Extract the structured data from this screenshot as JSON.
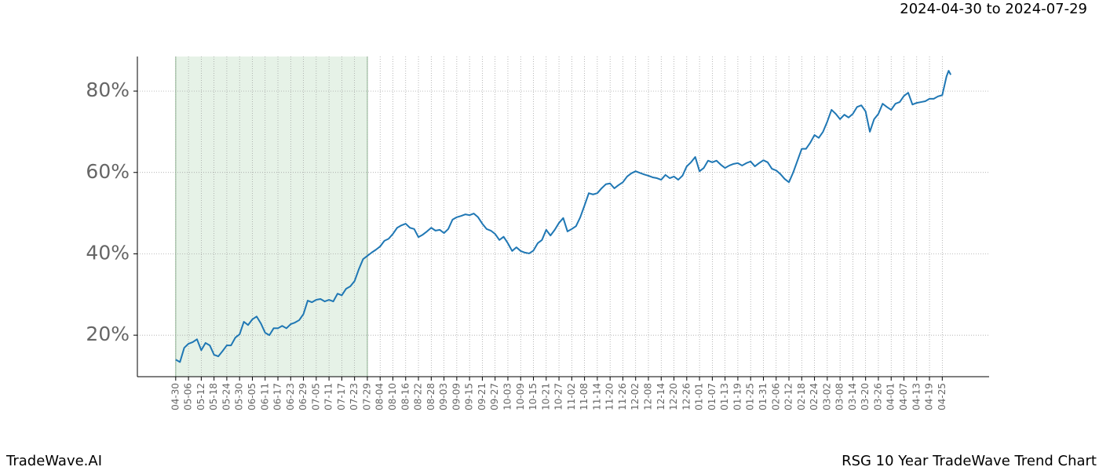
{
  "chart_data": {
    "type": "line",
    "date_range": "2024-04-30 to 2024-07-29",
    "footer_left": "TradeWave.AI",
    "footer_right": "RSG 10 Year TradeWave Trend Chart",
    "color": "#1f77b4",
    "shade": [
      0,
      90
    ],
    "grid": true,
    "xlim": [
      -18,
      382
    ],
    "ylim": [
      9.8,
      88.5
    ],
    "yticks": [
      {
        "value": 20,
        "label": "20%"
      },
      {
        "value": 40,
        "label": "40%"
      },
      {
        "value": 60,
        "label": "60%"
      },
      {
        "value": 80,
        "label": "80%"
      }
    ],
    "xticks": [
      {
        "value": 0,
        "label": "04-30"
      },
      {
        "value": 6,
        "label": "05-06"
      },
      {
        "value": 12,
        "label": "05-12"
      },
      {
        "value": 18,
        "label": "05-18"
      },
      {
        "value": 24,
        "label": "05-24"
      },
      {
        "value": 30,
        "label": "05-30"
      },
      {
        "value": 36,
        "label": "06-05"
      },
      {
        "value": 42,
        "label": "06-11"
      },
      {
        "value": 48,
        "label": "06-17"
      },
      {
        "value": 54,
        "label": "06-23"
      },
      {
        "value": 60,
        "label": "06-29"
      },
      {
        "value": 66,
        "label": "07-05"
      },
      {
        "value": 72,
        "label": "07-11"
      },
      {
        "value": 78,
        "label": "07-17"
      },
      {
        "value": 84,
        "label": "07-23"
      },
      {
        "value": 90,
        "label": "07-29"
      },
      {
        "value": 96,
        "label": "08-04"
      },
      {
        "value": 102,
        "label": "08-10"
      },
      {
        "value": 108,
        "label": "08-16"
      },
      {
        "value": 114,
        "label": "08-22"
      },
      {
        "value": 120,
        "label": "08-28"
      },
      {
        "value": 126,
        "label": "09-03"
      },
      {
        "value": 132,
        "label": "09-09"
      },
      {
        "value": 138,
        "label": "09-15"
      },
      {
        "value": 144,
        "label": "09-21"
      },
      {
        "value": 150,
        "label": "09-27"
      },
      {
        "value": 156,
        "label": "10-03"
      },
      {
        "value": 162,
        "label": "10-09"
      },
      {
        "value": 168,
        "label": "10-15"
      },
      {
        "value": 174,
        "label": "10-21"
      },
      {
        "value": 180,
        "label": "10-27"
      },
      {
        "value": 186,
        "label": "11-02"
      },
      {
        "value": 192,
        "label": "11-08"
      },
      {
        "value": 198,
        "label": "11-14"
      },
      {
        "value": 204,
        "label": "11-20"
      },
      {
        "value": 210,
        "label": "11-26"
      },
      {
        "value": 216,
        "label": "12-02"
      },
      {
        "value": 222,
        "label": "12-08"
      },
      {
        "value": 228,
        "label": "12-14"
      },
      {
        "value": 234,
        "label": "12-20"
      },
      {
        "value": 240,
        "label": "12-26"
      },
      {
        "value": 246,
        "label": "01-01"
      },
      {
        "value": 252,
        "label": "01-07"
      },
      {
        "value": 258,
        "label": "01-13"
      },
      {
        "value": 264,
        "label": "01-19"
      },
      {
        "value": 270,
        "label": "01-25"
      },
      {
        "value": 276,
        "label": "01-31"
      },
      {
        "value": 282,
        "label": "02-06"
      },
      {
        "value": 288,
        "label": "02-12"
      },
      {
        "value": 294,
        "label": "02-18"
      },
      {
        "value": 300,
        "label": "02-24"
      },
      {
        "value": 306,
        "label": "03-02"
      },
      {
        "value": 312,
        "label": "03-08"
      },
      {
        "value": 318,
        "label": "03-14"
      },
      {
        "value": 324,
        "label": "03-20"
      },
      {
        "value": 330,
        "label": "03-26"
      },
      {
        "value": 336,
        "label": "04-01"
      },
      {
        "value": 342,
        "label": "04-07"
      },
      {
        "value": 348,
        "label": "04-13"
      },
      {
        "value": 354,
        "label": "04-19"
      },
      {
        "value": 360,
        "label": "04-25"
      }
    ],
    "x": [
      0,
      2,
      4,
      6,
      8,
      10,
      12,
      14,
      16,
      18,
      20,
      22,
      24,
      26,
      28,
      30,
      32,
      34,
      36,
      38,
      40,
      42,
      44,
      46,
      48,
      50,
      52,
      54,
      56,
      58,
      60,
      62,
      64,
      66,
      68,
      70,
      72,
      74,
      76,
      78,
      80,
      82,
      84,
      86,
      88,
      90,
      92,
      94,
      96,
      98,
      100,
      102,
      104,
      106,
      108,
      110,
      112,
      114,
      116,
      118,
      120,
      122,
      124,
      126,
      128,
      130,
      132,
      134,
      136,
      138,
      140,
      142,
      144,
      146,
      148,
      150,
      152,
      154,
      156,
      158,
      160,
      162,
      164,
      166,
      168,
      170,
      172,
      174,
      176,
      178,
      180,
      182,
      184,
      186,
      188,
      190,
      192,
      194,
      196,
      198,
      200,
      202,
      204,
      206,
      208,
      210,
      212,
      214,
      216,
      218,
      220,
      222,
      224,
      226,
      228,
      230,
      232,
      234,
      236,
      238,
      240,
      242,
      244,
      246,
      248,
      250,
      252,
      254,
      256,
      258,
      260,
      262,
      264,
      266,
      268,
      270,
      272,
      274,
      276,
      278,
      280,
      282,
      284,
      286,
      288,
      290,
      292,
      294,
      296,
      298,
      300,
      302,
      304,
      306,
      308,
      310,
      312,
      314,
      316,
      318,
      320,
      322,
      324,
      326,
      328,
      330,
      332,
      334,
      336,
      338,
      340,
      342,
      344,
      346,
      348,
      350,
      352,
      354,
      356,
      358,
      360,
      362,
      363,
      364
    ],
    "values": [
      14.0,
      13.4,
      16.9,
      17.9,
      18.3,
      19.0,
      16.3,
      18.1,
      17.5,
      15.2,
      14.8,
      16.1,
      17.5,
      17.5,
      19.4,
      20.2,
      23.3,
      22.5,
      23.9,
      24.6,
      22.9,
      20.6,
      20.0,
      21.7,
      21.7,
      22.3,
      21.7,
      22.7,
      23.1,
      23.7,
      25.2,
      28.5,
      28.1,
      28.7,
      28.9,
      28.3,
      28.7,
      28.3,
      30.2,
      29.8,
      31.4,
      32.0,
      33.3,
      36.2,
      38.7,
      39.5,
      40.3,
      41.0,
      41.8,
      43.2,
      43.7,
      44.9,
      46.4,
      47.0,
      47.4,
      46.4,
      46.1,
      44.1,
      44.7,
      45.5,
      46.4,
      45.7,
      45.9,
      45.1,
      46.1,
      48.4,
      49.0,
      49.3,
      49.7,
      49.5,
      49.9,
      49.0,
      47.4,
      46.1,
      45.7,
      44.9,
      43.4,
      44.2,
      42.6,
      40.7,
      41.6,
      40.7,
      40.3,
      40.1,
      40.8,
      42.6,
      43.4,
      45.9,
      44.5,
      45.9,
      47.6,
      48.8,
      45.5,
      46.1,
      46.8,
      49.0,
      51.9,
      54.9,
      54.6,
      54.9,
      56.1,
      57.1,
      57.3,
      56.1,
      56.9,
      57.6,
      59.0,
      59.8,
      60.3,
      59.9,
      59.5,
      59.2,
      58.8,
      58.6,
      58.2,
      59.4,
      58.6,
      59.0,
      58.2,
      59.2,
      61.5,
      62.5,
      63.8,
      60.3,
      61.1,
      62.9,
      62.5,
      62.9,
      61.9,
      61.1,
      61.7,
      62.1,
      62.3,
      61.7,
      62.3,
      62.7,
      61.5,
      62.3,
      63.0,
      62.5,
      60.9,
      60.5,
      59.6,
      58.4,
      57.6,
      60.0,
      62.9,
      65.8,
      65.8,
      67.3,
      69.2,
      68.5,
      70.0,
      72.5,
      75.4,
      74.4,
      73.1,
      74.2,
      73.5,
      74.4,
      76.1,
      76.5,
      75.0,
      70.0,
      73.1,
      74.4,
      76.9,
      76.1,
      75.4,
      76.9,
      77.3,
      78.8,
      79.6,
      76.7,
      77.1,
      77.3,
      77.5,
      78.1,
      78.1,
      78.7,
      79.0,
      83.6,
      85.0,
      84.0
    ]
  }
}
